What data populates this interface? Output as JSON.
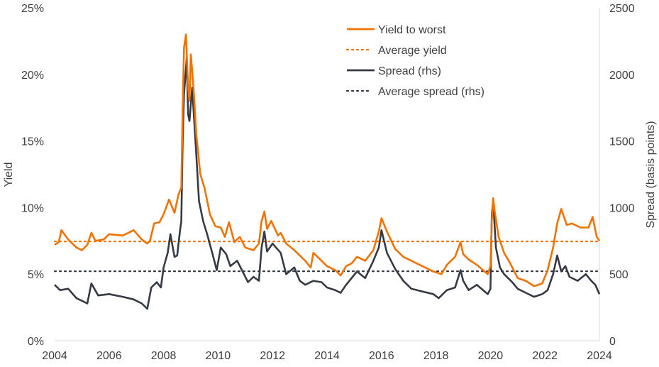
{
  "chart_data": {
    "type": "line",
    "title": "",
    "ylabel": "Yield",
    "y2label": "Spread (basis points)",
    "xlim": [
      2004,
      2024
    ],
    "ylim": [
      0,
      25
    ],
    "y2lim": [
      0,
      2500
    ],
    "xticks": [
      "2004",
      "2006",
      "2008",
      "2010",
      "2012",
      "2014",
      "2016",
      "2018",
      "2020",
      "2022",
      "2024"
    ],
    "yticks": [
      "0%",
      "5%",
      "10%",
      "15%",
      "20%",
      "25%"
    ],
    "y2ticks": [
      "0",
      "500",
      "1000",
      "1500",
      "2000",
      "2500"
    ],
    "grid": false,
    "legend_position": "top-center",
    "colors": {
      "yield": "#F07300",
      "spread": "#363A45",
      "axis": "#D9D9D9"
    },
    "series": [
      {
        "name": "Yield to worst",
        "axis": "left",
        "style": "solid",
        "x": [
          2004.0,
          2004.15,
          2004.25,
          2004.5,
          2004.8,
          2005.0,
          2005.2,
          2005.35,
          2005.5,
          2005.8,
          2006.0,
          2006.5,
          2006.9,
          2007.2,
          2007.4,
          2007.5,
          2007.65,
          2007.85,
          2008.0,
          2008.2,
          2008.4,
          2008.55,
          2008.65,
          2008.7,
          2008.75,
          2008.82,
          2008.9,
          2008.95,
          2009.0,
          2009.1,
          2009.2,
          2009.35,
          2009.5,
          2009.7,
          2009.9,
          2010.1,
          2010.25,
          2010.4,
          2010.6,
          2010.8,
          2011.0,
          2011.3,
          2011.5,
          2011.6,
          2011.7,
          2011.8,
          2011.95,
          2012.2,
          2012.3,
          2012.5,
          2012.8,
          2013.0,
          2013.2,
          2013.4,
          2013.5,
          2013.7,
          2014.0,
          2014.3,
          2014.5,
          2014.7,
          2014.9,
          2015.1,
          2015.4,
          2015.7,
          2015.9,
          2016.0,
          2016.2,
          2016.5,
          2016.8,
          2017.2,
          2017.5,
          2017.9,
          2018.2,
          2018.4,
          2018.7,
          2018.9,
          2019.0,
          2019.2,
          2019.5,
          2019.9,
          2020.0,
          2020.05,
          2020.1,
          2020.15,
          2020.3,
          2020.5,
          2020.7,
          2021.0,
          2021.3,
          2021.6,
          2021.9,
          2022.1,
          2022.3,
          2022.45,
          2022.6,
          2022.8,
          2023.0,
          2023.3,
          2023.6,
          2023.75,
          2023.9,
          2024.0
        ],
        "values": [
          7.2,
          7.4,
          8.3,
          7.6,
          7.0,
          6.8,
          7.2,
          8.1,
          7.5,
          7.6,
          8.0,
          7.9,
          8.3,
          7.6,
          7.3,
          7.5,
          8.8,
          8.9,
          9.5,
          10.6,
          9.6,
          11.0,
          11.5,
          17.5,
          22.0,
          23.0,
          19.0,
          18.0,
          21.5,
          19.0,
          15.5,
          12.5,
          11.5,
          9.5,
          8.6,
          8.5,
          7.8,
          8.9,
          7.4,
          7.8,
          7.0,
          6.8,
          7.3,
          9.0,
          9.7,
          8.4,
          9.0,
          7.9,
          8.1,
          7.3,
          6.8,
          6.4,
          6.0,
          5.5,
          6.6,
          6.2,
          5.6,
          5.3,
          4.9,
          5.6,
          5.8,
          6.3,
          6.0,
          6.8,
          8.2,
          9.2,
          8.2,
          6.9,
          6.3,
          5.9,
          5.6,
          5.2,
          5.0,
          5.7,
          6.3,
          7.4,
          6.5,
          6.1,
          5.7,
          5.0,
          5.6,
          9.0,
          10.7,
          9.8,
          7.8,
          6.6,
          5.9,
          4.7,
          4.5,
          4.1,
          4.3,
          5.3,
          7.0,
          8.8,
          9.9,
          8.7,
          8.8,
          8.5,
          8.5,
          9.3,
          7.8,
          7.5
        ]
      },
      {
        "name": "Average yield",
        "axis": "left",
        "style": "dotted",
        "x": [
          2004,
          2024
        ],
        "values": [
          7.46,
          7.46
        ]
      },
      {
        "name": "Spread (rhs)",
        "axis": "right",
        "style": "solid",
        "x": [
          2004.0,
          2004.2,
          2004.5,
          2004.8,
          2005.0,
          2005.2,
          2005.35,
          2005.6,
          2006.0,
          2006.5,
          2006.9,
          2007.2,
          2007.4,
          2007.55,
          2007.75,
          2007.9,
          2008.0,
          2008.15,
          2008.25,
          2008.4,
          2008.5,
          2008.6,
          2008.65,
          2008.7,
          2008.75,
          2008.85,
          2008.9,
          2008.95,
          2009.05,
          2009.2,
          2009.3,
          2009.45,
          2009.6,
          2009.8,
          2009.95,
          2010.1,
          2010.3,
          2010.45,
          2010.7,
          2010.95,
          2011.1,
          2011.3,
          2011.5,
          2011.6,
          2011.7,
          2011.8,
          2012.0,
          2012.3,
          2012.5,
          2012.8,
          2013.0,
          2013.2,
          2013.5,
          2013.8,
          2014.0,
          2014.3,
          2014.5,
          2014.7,
          2014.9,
          2015.1,
          2015.4,
          2015.7,
          2015.9,
          2016.0,
          2016.2,
          2016.5,
          2016.8,
          2017.1,
          2017.5,
          2017.9,
          2018.1,
          2018.4,
          2018.7,
          2018.9,
          2019.0,
          2019.2,
          2019.5,
          2019.9,
          2020.0,
          2020.05,
          2020.1,
          2020.2,
          2020.35,
          2020.5,
          2020.8,
          2021.0,
          2021.3,
          2021.6,
          2021.9,
          2022.1,
          2022.3,
          2022.45,
          2022.6,
          2022.75,
          2022.9,
          2023.2,
          2023.5,
          2023.7,
          2023.85,
          2024.0
        ],
        "values": [
          420,
          380,
          390,
          320,
          300,
          280,
          430,
          340,
          350,
          330,
          310,
          280,
          240,
          400,
          440,
          400,
          550,
          660,
          800,
          630,
          640,
          820,
          900,
          1500,
          1850,
          2120,
          1700,
          1650,
          1900,
          1400,
          1050,
          900,
          800,
          650,
          530,
          700,
          650,
          560,
          600,
          500,
          440,
          480,
          450,
          700,
          820,
          670,
          730,
          660,
          500,
          550,
          450,
          420,
          450,
          440,
          400,
          380,
          360,
          420,
          470,
          520,
          470,
          600,
          700,
          830,
          660,
          540,
          450,
          390,
          370,
          350,
          320,
          380,
          400,
          530,
          450,
          380,
          420,
          350,
          390,
          950,
          1050,
          700,
          550,
          500,
          440,
          390,
          360,
          330,
          350,
          380,
          500,
          640,
          520,
          560,
          480,
          450,
          500,
          450,
          420,
          350
        ]
      },
      {
        "name": "Average spread (rhs)",
        "axis": "right",
        "style": "dotted",
        "x": [
          2004,
          2024
        ],
        "values": [
          522,
          522
        ]
      }
    ]
  }
}
